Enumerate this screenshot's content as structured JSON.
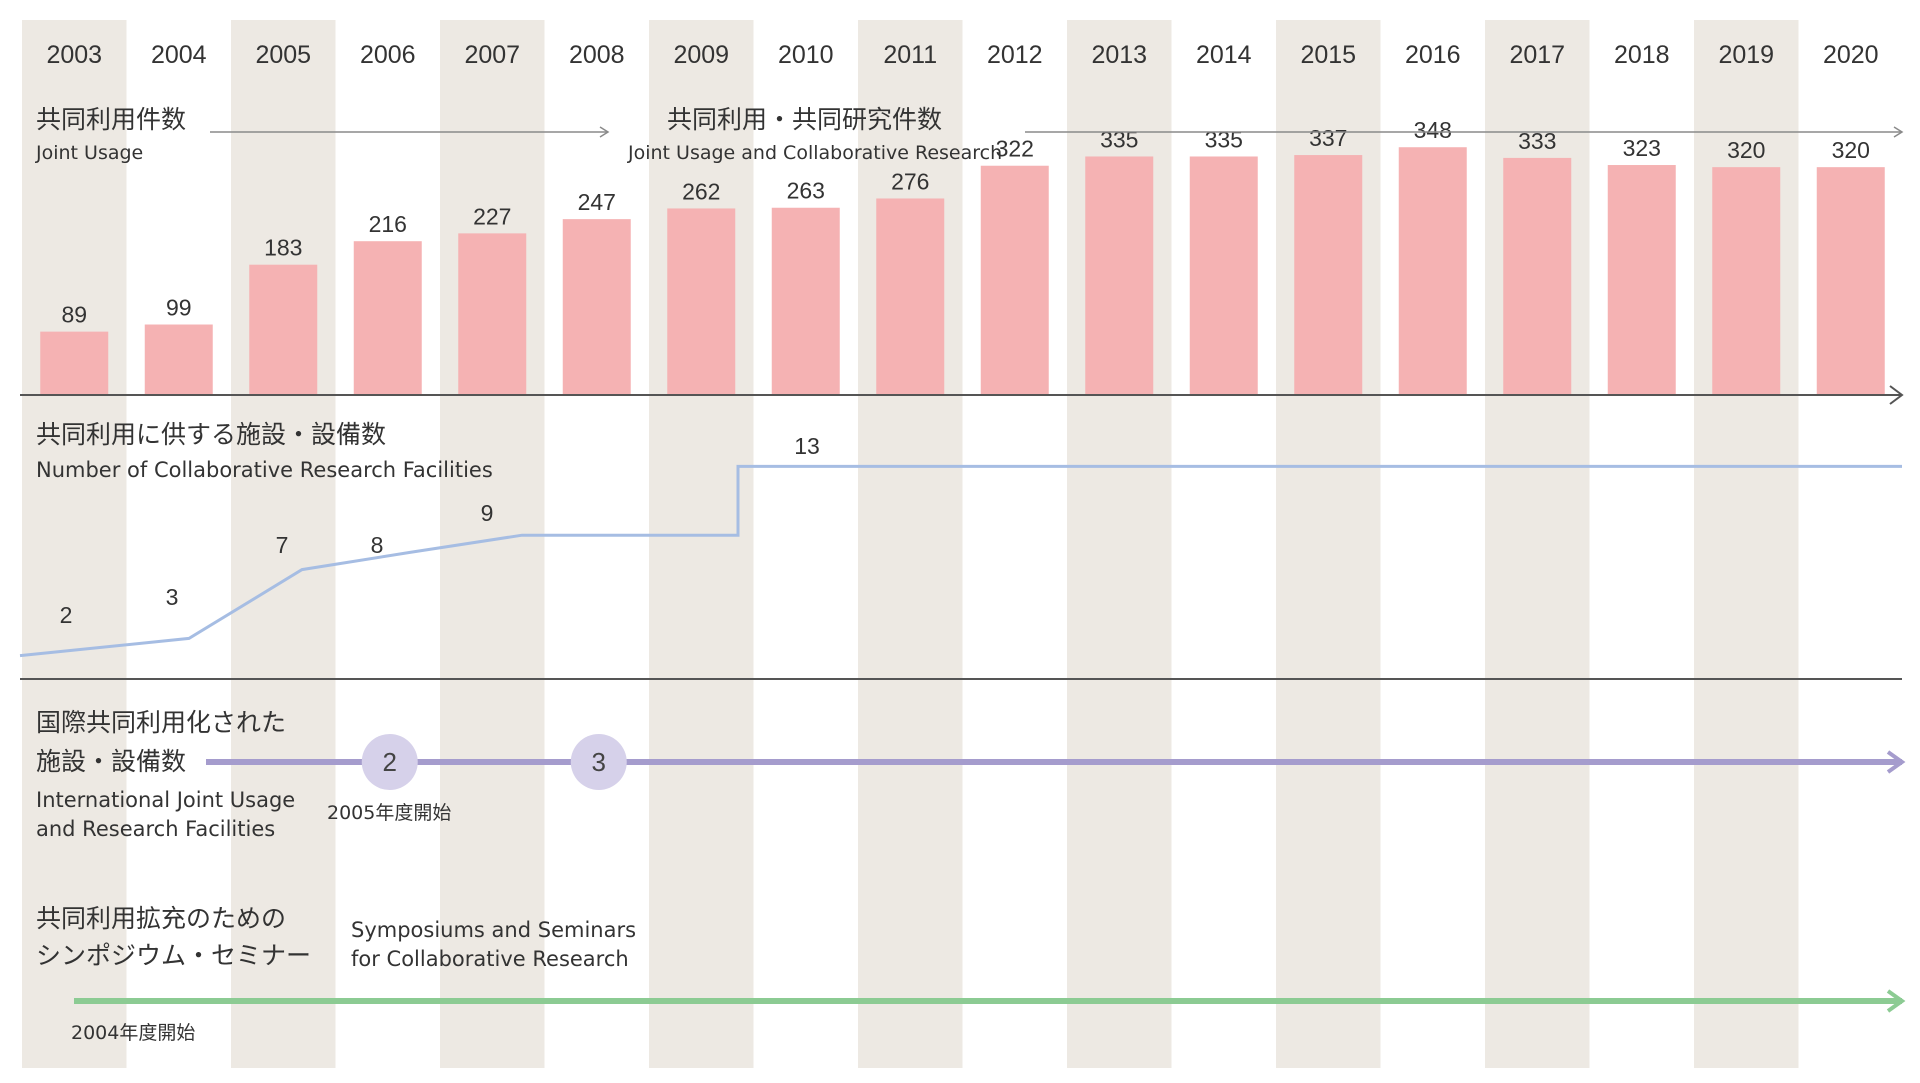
{
  "chart_data": [
    {
      "type": "bar",
      "categories": [
        "2003",
        "2004",
        "2005",
        "2006",
        "2007",
        "2008",
        "2009",
        "2010",
        "2011",
        "2012",
        "2013",
        "2014",
        "2015",
        "2016",
        "2017",
        "2018",
        "2019",
        "2020"
      ],
      "values": [
        89,
        99,
        183,
        216,
        227,
        247,
        262,
        263,
        276,
        322,
        335,
        335,
        337,
        348,
        333,
        323,
        320,
        320
      ],
      "title_jp": "共同利用件数",
      "title_en": "Joint Usage",
      "title2_jp": "共同利用・共同研究件数",
      "title2_en": "Joint Usage and Collaborative Research",
      "ylim": [
        0,
        400
      ],
      "bar_color": "#f5b2b3"
    },
    {
      "type": "line",
      "title_jp": "共同利用に供する施設・設備数",
      "title_en": "Number of Collaborative Research Facilities",
      "x": [
        "2003",
        "2004",
        "2005",
        "2006",
        "2007",
        "2009",
        "2010",
        "2011",
        "2020"
      ],
      "points": [
        2,
        3,
        7,
        8,
        9,
        9,
        13,
        13,
        13
      ],
      "labels": [
        {
          "x": "2003",
          "value": "2"
        },
        {
          "x": "2004",
          "value": "3"
        },
        {
          "x": "2005",
          "value": "7"
        },
        {
          "x": "2006",
          "value": "8"
        },
        {
          "x": "2007",
          "value": "9"
        },
        {
          "x": "2010",
          "value": "13"
        }
      ],
      "line_color": "#a6bde3"
    }
  ],
  "international": {
    "title_jp_1": "国際共同利用化された",
    "title_jp_2": "施設・設備数",
    "title_en_1": "International Joint Usage",
    "title_en_2": "and Research Facilities",
    "markers": [
      {
        "year": "2006",
        "value": "2"
      },
      {
        "year": "2008",
        "value": "3"
      }
    ],
    "note": "2005年度開始",
    "color": "#a59ccd",
    "marker_fill": "#d6d1ea"
  },
  "symposium": {
    "title_jp_1": "共同利用拡充のための",
    "title_jp_2": "シンポジウム・セミナー",
    "title_en_1": "Symposiums and Seminars",
    "title_en_2": "for Collaborative Research",
    "note": "2004年度開始",
    "color": "#8ccb93"
  },
  "colors": {
    "band": "#ede9e3",
    "axis": "#555555",
    "arrow": "#8a8a8a"
  }
}
